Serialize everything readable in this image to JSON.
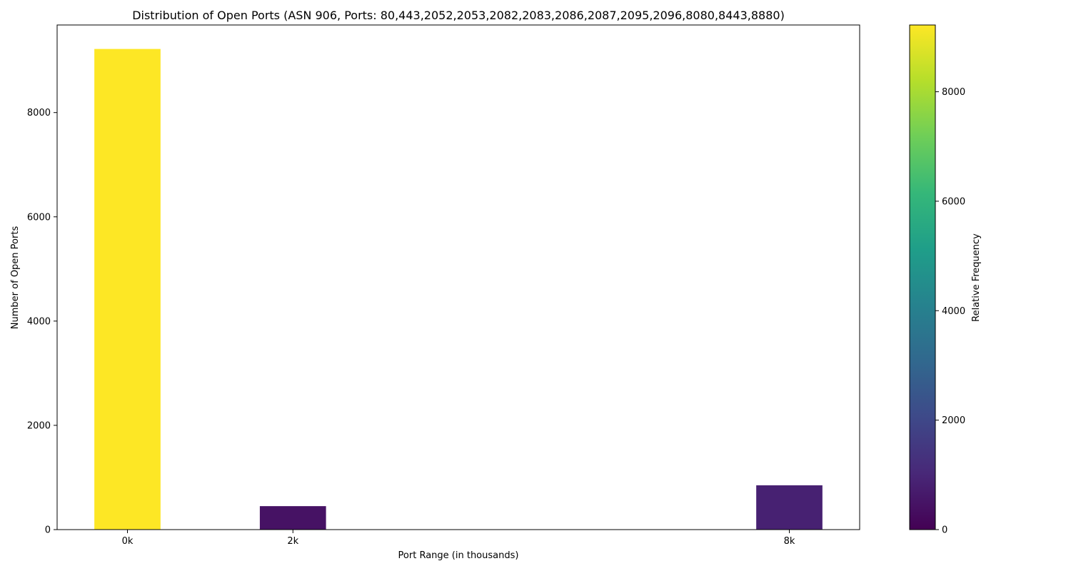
{
  "chart_data": {
    "type": "bar",
    "title": "Distribution of Open Ports (ASN 906, Ports: 80,443,2052,2053,2082,2083,2086,2087,2095,2096,8080,8443,8880)",
    "xlabel": "Port Range (in thousands)",
    "ylabel": "Number of Open Ports",
    "x": [
      0,
      2,
      8
    ],
    "categories": [
      "0k",
      "2k",
      "8k"
    ],
    "values": [
      9220,
      450,
      850
    ],
    "bar_width": 0.8,
    "xlim": [
      -0.85,
      8.85
    ],
    "ylim": [
      0,
      9680
    ],
    "yticks": [
      0,
      2000,
      4000,
      6000,
      8000
    ],
    "ytick_labels": [
      "0",
      "2000",
      "4000",
      "6000",
      "8000"
    ],
    "grid": false,
    "legend": "none",
    "colormap": "viridis",
    "colorbar": {
      "label": "Relative Frequency",
      "range": [
        0,
        9220
      ],
      "ticks": [
        0,
        2000,
        4000,
        6000,
        8000
      ],
      "tick_labels": [
        "0",
        "2000",
        "4000",
        "6000",
        "8000"
      ],
      "stops": [
        "#440154",
        "#482878",
        "#3e4989",
        "#31688e",
        "#26828e",
        "#1f9e89",
        "#35b779",
        "#6ece58",
        "#b5de2b",
        "#fde725"
      ]
    }
  }
}
